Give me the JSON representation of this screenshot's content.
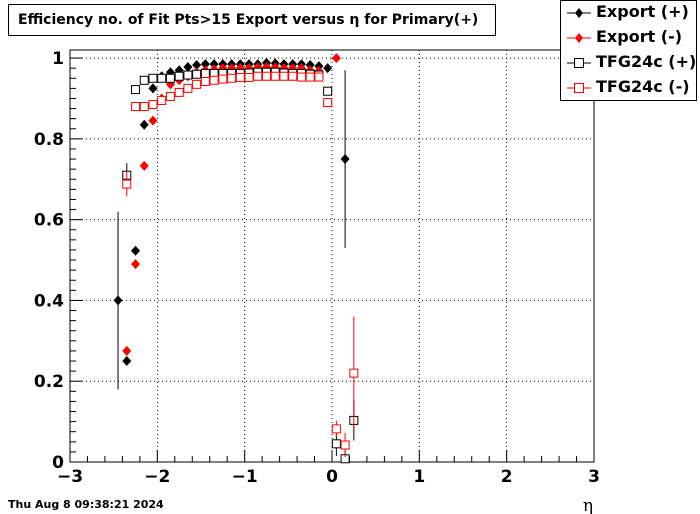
{
  "chart_data": {
    "type": "scatter",
    "title": "Efficiency no. of Fit Pts>15 Export versus η for Primary(+)",
    "xlabel": "η",
    "ylabel": "",
    "xlim": [
      -3,
      3
    ],
    "ylim": [
      0,
      1.02
    ],
    "xticks": [
      -3,
      -2,
      -1,
      0,
      1,
      2,
      3
    ],
    "xtick_labels": [
      "−3",
      "−2",
      "−1",
      "0",
      "1",
      "2",
      "3"
    ],
    "yticks": [
      0,
      0.2,
      0.4,
      0.6,
      0.8,
      1
    ],
    "ytick_labels": [
      "0",
      "0.2",
      "0.4",
      "0.6",
      "0.8",
      "1"
    ],
    "grid": true,
    "legend_position": "top-right",
    "series": [
      {
        "name": "Export (+)",
        "color": "#000000",
        "marker": "filled-diamond",
        "points": [
          {
            "x": -2.45,
            "y": 0.4,
            "err": 0.22
          },
          {
            "x": -2.35,
            "y": 0.25,
            "err": 0.0
          },
          {
            "x": -2.25,
            "y": 0.523,
            "err": 0.0
          },
          {
            "x": -2.15,
            "y": 0.835,
            "err": 0.0
          },
          {
            "x": -2.05,
            "y": 0.925,
            "err": 0.0
          },
          {
            "x": -1.95,
            "y": 0.955,
            "err": 0.0
          },
          {
            "x": -1.85,
            "y": 0.965,
            "err": 0.0
          },
          {
            "x": -1.75,
            "y": 0.97,
            "err": 0.0
          },
          {
            "x": -1.65,
            "y": 0.978,
            "err": 0.0
          },
          {
            "x": -1.55,
            "y": 0.983,
            "err": 0.0
          },
          {
            "x": -1.45,
            "y": 0.985,
            "err": 0.0
          },
          {
            "x": -1.35,
            "y": 0.985,
            "err": 0.0
          },
          {
            "x": -1.25,
            "y": 0.985,
            "err": 0.0
          },
          {
            "x": -1.15,
            "y": 0.985,
            "err": 0.0
          },
          {
            "x": -1.05,
            "y": 0.985,
            "err": 0.0
          },
          {
            "x": -0.95,
            "y": 0.985,
            "err": 0.0
          },
          {
            "x": -0.85,
            "y": 0.985,
            "err": 0.0
          },
          {
            "x": -0.75,
            "y": 0.988,
            "err": 0.0
          },
          {
            "x": -0.65,
            "y": 0.987,
            "err": 0.0
          },
          {
            "x": -0.55,
            "y": 0.985,
            "err": 0.0
          },
          {
            "x": -0.45,
            "y": 0.985,
            "err": 0.0
          },
          {
            "x": -0.35,
            "y": 0.985,
            "err": 0.0
          },
          {
            "x": -0.25,
            "y": 0.983,
            "err": 0.0
          },
          {
            "x": -0.15,
            "y": 0.98,
            "err": 0.0
          },
          {
            "x": -0.05,
            "y": 0.975,
            "err": 0.0
          },
          {
            "x": 0.15,
            "y": 0.75,
            "err": 0.22
          }
        ]
      },
      {
        "name": "Export (-)",
        "color": "#ff0000",
        "marker": "filled-diamond",
        "points": [
          {
            "x": -2.35,
            "y": 0.275,
            "err": 0.0
          },
          {
            "x": -2.25,
            "y": 0.49,
            "err": 0.0
          },
          {
            "x": -2.15,
            "y": 0.733,
            "err": 0.0
          },
          {
            "x": -2.05,
            "y": 0.845,
            "err": 0.0
          },
          {
            "x": -1.95,
            "y": 0.9,
            "err": 0.0
          },
          {
            "x": -1.85,
            "y": 0.935,
            "err": 0.0
          },
          {
            "x": -1.75,
            "y": 0.945,
            "err": 0.0
          },
          {
            "x": -1.65,
            "y": 0.955,
            "err": 0.0
          },
          {
            "x": -1.55,
            "y": 0.965,
            "err": 0.0
          },
          {
            "x": -1.45,
            "y": 0.97,
            "err": 0.0
          },
          {
            "x": -1.35,
            "y": 0.972,
            "err": 0.0
          },
          {
            "x": -1.25,
            "y": 0.975,
            "err": 0.0
          },
          {
            "x": -1.15,
            "y": 0.975,
            "err": 0.0
          },
          {
            "x": -1.05,
            "y": 0.975,
            "err": 0.0
          },
          {
            "x": -0.95,
            "y": 0.975,
            "err": 0.0
          },
          {
            "x": -0.85,
            "y": 0.977,
            "err": 0.0
          },
          {
            "x": -0.75,
            "y": 0.978,
            "err": 0.0
          },
          {
            "x": -0.65,
            "y": 0.977,
            "err": 0.0
          },
          {
            "x": -0.55,
            "y": 0.975,
            "err": 0.0
          },
          {
            "x": -0.45,
            "y": 0.975,
            "err": 0.0
          },
          {
            "x": -0.35,
            "y": 0.975,
            "err": 0.0
          },
          {
            "x": -0.25,
            "y": 0.97,
            "err": 0.0
          },
          {
            "x": -0.15,
            "y": 0.968,
            "err": 0.0
          },
          {
            "x": 0.05,
            "y": 1.0,
            "err": 0.0
          }
        ]
      },
      {
        "name": "TFG24c (+)",
        "color": "#000000",
        "marker": "open-square",
        "points": [
          {
            "x": -2.35,
            "y": 0.71,
            "err": 0.03
          },
          {
            "x": -2.25,
            "y": 0.922,
            "err": 0.0
          },
          {
            "x": -2.15,
            "y": 0.945,
            "err": 0.0
          },
          {
            "x": -2.05,
            "y": 0.95,
            "err": 0.0
          },
          {
            "x": -1.95,
            "y": 0.95,
            "err": 0.0
          },
          {
            "x": -1.85,
            "y": 0.95,
            "err": 0.0
          },
          {
            "x": -1.75,
            "y": 0.955,
            "err": 0.0
          },
          {
            "x": -1.65,
            "y": 0.958,
            "err": 0.0
          },
          {
            "x": -1.55,
            "y": 0.96,
            "err": 0.0
          },
          {
            "x": -1.45,
            "y": 0.962,
            "err": 0.0
          },
          {
            "x": -1.35,
            "y": 0.962,
            "err": 0.0
          },
          {
            "x": -1.25,
            "y": 0.962,
            "err": 0.0
          },
          {
            "x": -1.15,
            "y": 0.962,
            "err": 0.0
          },
          {
            "x": -1.05,
            "y": 0.962,
            "err": 0.0
          },
          {
            "x": -0.95,
            "y": 0.963,
            "err": 0.0
          },
          {
            "x": -0.85,
            "y": 0.965,
            "err": 0.0
          },
          {
            "x": -0.75,
            "y": 0.965,
            "err": 0.0
          },
          {
            "x": -0.65,
            "y": 0.965,
            "err": 0.0
          },
          {
            "x": -0.55,
            "y": 0.963,
            "err": 0.0
          },
          {
            "x": -0.45,
            "y": 0.962,
            "err": 0.0
          },
          {
            "x": -0.35,
            "y": 0.962,
            "err": 0.0
          },
          {
            "x": -0.25,
            "y": 0.96,
            "err": 0.0
          },
          {
            "x": -0.15,
            "y": 0.958,
            "err": 0.0
          },
          {
            "x": -0.05,
            "y": 0.918,
            "err": 0.0
          },
          {
            "x": 0.05,
            "y": 0.045,
            "err": 0.03
          },
          {
            "x": 0.15,
            "y": 0.008,
            "err": 0.02
          },
          {
            "x": 0.25,
            "y": 0.103,
            "err": 0.05
          }
        ]
      },
      {
        "name": "TFG24c (-)",
        "color": "#ff0000",
        "marker": "open-square",
        "points": [
          {
            "x": -2.35,
            "y": 0.688,
            "err": 0.03
          },
          {
            "x": -2.25,
            "y": 0.88,
            "err": 0.0
          },
          {
            "x": -2.15,
            "y": 0.88,
            "err": 0.0
          },
          {
            "x": -2.05,
            "y": 0.885,
            "err": 0.0
          },
          {
            "x": -1.95,
            "y": 0.895,
            "err": 0.0
          },
          {
            "x": -1.85,
            "y": 0.905,
            "err": 0.0
          },
          {
            "x": -1.75,
            "y": 0.915,
            "err": 0.0
          },
          {
            "x": -1.65,
            "y": 0.925,
            "err": 0.0
          },
          {
            "x": -1.55,
            "y": 0.935,
            "err": 0.0
          },
          {
            "x": -1.45,
            "y": 0.942,
            "err": 0.0
          },
          {
            "x": -1.35,
            "y": 0.945,
            "err": 0.0
          },
          {
            "x": -1.25,
            "y": 0.948,
            "err": 0.0
          },
          {
            "x": -1.15,
            "y": 0.95,
            "err": 0.0
          },
          {
            "x": -1.05,
            "y": 0.952,
            "err": 0.0
          },
          {
            "x": -0.95,
            "y": 0.952,
            "err": 0.0
          },
          {
            "x": -0.85,
            "y": 0.955,
            "err": 0.0
          },
          {
            "x": -0.75,
            "y": 0.955,
            "err": 0.0
          },
          {
            "x": -0.65,
            "y": 0.955,
            "err": 0.0
          },
          {
            "x": -0.55,
            "y": 0.955,
            "err": 0.0
          },
          {
            "x": -0.45,
            "y": 0.955,
            "err": 0.0
          },
          {
            "x": -0.35,
            "y": 0.953,
            "err": 0.0
          },
          {
            "x": -0.25,
            "y": 0.953,
            "err": 0.0
          },
          {
            "x": -0.15,
            "y": 0.953,
            "err": 0.0
          },
          {
            "x": -0.05,
            "y": 0.89,
            "err": 0.0
          },
          {
            "x": 0.05,
            "y": 0.082,
            "err": 0.02
          },
          {
            "x": 0.15,
            "y": 0.042,
            "err": 0.03
          },
          {
            "x": 0.25,
            "y": 0.22,
            "err": 0.14
          }
        ]
      }
    ]
  },
  "footer": {
    "timestamp": "Thu Aug  8 09:38:21 2024"
  }
}
